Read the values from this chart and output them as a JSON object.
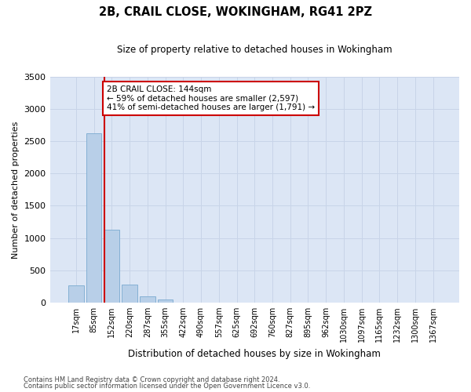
{
  "title1": "2B, CRAIL CLOSE, WOKINGHAM, RG41 2PZ",
  "title2": "Size of property relative to detached houses in Wokingham",
  "xlabel": "Distribution of detached houses by size in Wokingham",
  "ylabel": "Number of detached properties",
  "categories": [
    "17sqm",
    "85sqm",
    "152sqm",
    "220sqm",
    "287sqm",
    "355sqm",
    "422sqm",
    "490sqm",
    "557sqm",
    "625sqm",
    "692sqm",
    "760sqm",
    "827sqm",
    "895sqm",
    "962sqm",
    "1030sqm",
    "1097sqm",
    "1165sqm",
    "1232sqm",
    "1300sqm",
    "1367sqm"
  ],
  "values": [
    260,
    2620,
    1130,
    280,
    95,
    45,
    0,
    0,
    0,
    0,
    0,
    0,
    0,
    0,
    0,
    0,
    0,
    0,
    0,
    0,
    0
  ],
  "bar_color": "#b8cfe8",
  "bar_edge_color": "#7aaad0",
  "vline_color": "#cc0000",
  "annotation_text": "2B CRAIL CLOSE: 144sqm\n← 59% of detached houses are smaller (2,597)\n41% of semi-detached houses are larger (1,791) →",
  "annotation_box_color": "#ffffff",
  "annotation_box_edge": "#cc0000",
  "ylim": [
    0,
    3500
  ],
  "yticks": [
    0,
    500,
    1000,
    1500,
    2000,
    2500,
    3000,
    3500
  ],
  "grid_color": "#c8d4e8",
  "bg_color": "#dce6f5",
  "fig_color": "#ffffff",
  "footer1": "Contains HM Land Registry data © Crown copyright and database right 2024.",
  "footer2": "Contains public sector information licensed under the Open Government Licence v3.0."
}
